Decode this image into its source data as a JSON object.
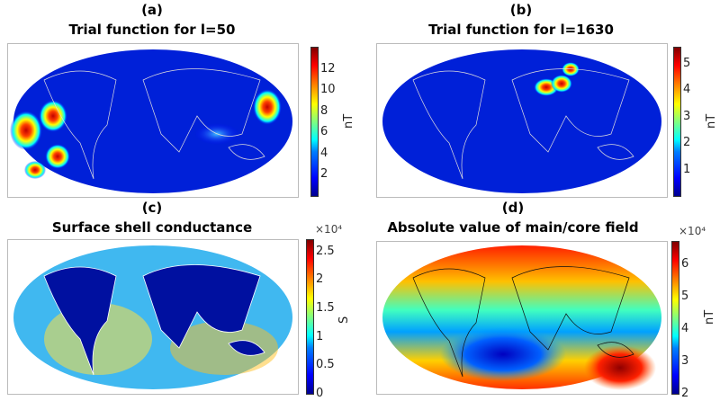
{
  "panels": [
    {
      "letter": "(a)",
      "title": "Trial function for l=50",
      "colorbar": {
        "ticks": [
          2,
          4,
          6,
          8,
          10,
          12
        ],
        "range": [
          0,
          14
        ],
        "unit": "nT",
        "multiplier": ""
      }
    },
    {
      "letter": "(b)",
      "title": "Trial function for l=1630",
      "colorbar": {
        "ticks": [
          1,
          2,
          3,
          4,
          5
        ],
        "range": [
          0,
          5.6
        ],
        "unit": "nT",
        "multiplier": ""
      }
    },
    {
      "letter": "(c)",
      "title": "Surface shell conductance",
      "colorbar": {
        "ticks": [
          "0",
          "0.5",
          "1",
          "1.5",
          "2",
          "2.5"
        ],
        "range": [
          0,
          2.7
        ],
        "unit": "S",
        "multiplier": "×10⁴"
      }
    },
    {
      "letter": "(d)",
      "title": "Absolute value of main/core field",
      "colorbar": {
        "ticks": [
          2,
          3,
          4,
          5,
          6
        ],
        "range": [
          2,
          6.7
        ],
        "unit": "nT",
        "multiplier": "×10⁴"
      }
    }
  ],
  "colormap": "jet"
}
